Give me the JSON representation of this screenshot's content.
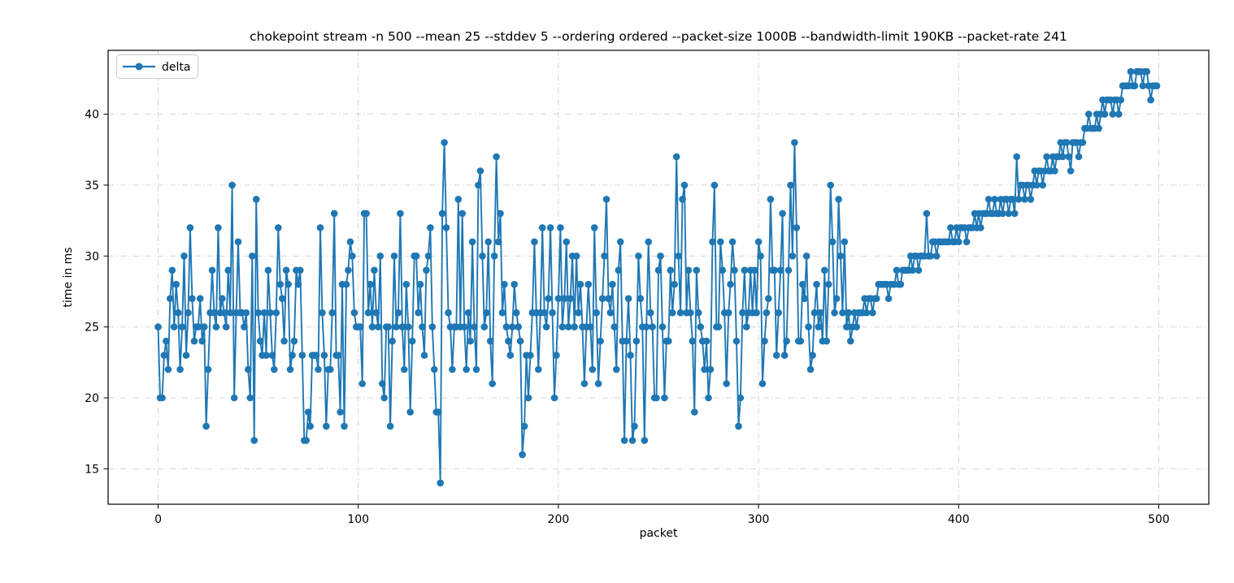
{
  "colors": {
    "series": "#1f77b4",
    "grid": "#cfcfcf",
    "spine": "#000000",
    "background": "#ffffff",
    "legend_border": "#cccccc"
  },
  "chart_data": {
    "type": "line",
    "title": "chokepoint stream -n 500 --mean 25 --stddev 5 --ordering ordered --packet-size 1000B --bandwidth-limit 190KB --packet-rate 241",
    "xlabel": "packet",
    "ylabel": "time in ms",
    "x_ticks": [
      0,
      100,
      200,
      300,
      400,
      500
    ],
    "y_ticks": [
      15,
      20,
      25,
      30,
      35,
      40
    ],
    "xlim": [
      -25,
      525
    ],
    "ylim": [
      12.5,
      44.5
    ],
    "grid": true,
    "grid_style": "dash-dot",
    "legend_position": "upper left",
    "marker": "circle",
    "series": [
      {
        "name": "delta",
        "x_start": 0,
        "x_step": 1,
        "values": [
          25,
          20,
          20,
          23,
          24,
          22,
          27,
          29,
          25,
          28,
          26,
          22,
          25,
          30,
          23,
          26,
          32,
          27,
          24,
          25,
          25,
          27,
          24,
          25,
          18,
          22,
          26,
          29,
          26,
          25,
          32,
          26,
          27,
          26,
          25,
          29,
          26,
          35,
          20,
          26,
          31,
          26,
          26,
          25,
          26,
          22,
          20,
          30,
          17,
          34,
          26,
          24,
          23,
          26,
          23,
          29,
          26,
          23,
          22,
          26,
          32,
          28,
          27,
          24,
          29,
          28,
          22,
          23,
          24,
          29,
          28,
          29,
          23,
          17,
          17,
          19,
          18,
          23,
          23,
          23,
          22,
          32,
          26,
          23,
          18,
          22,
          22,
          26,
          33,
          23,
          23,
          19,
          28,
          18,
          28,
          29,
          31,
          30,
          26,
          25,
          25,
          25,
          21,
          33,
          33,
          26,
          28,
          25,
          29,
          26,
          25,
          30,
          21,
          20,
          25,
          25,
          18,
          24,
          30,
          25,
          26,
          33,
          25,
          22,
          28,
          25,
          19,
          24,
          30,
          30,
          26,
          28,
          25,
          23,
          29,
          30,
          32,
          25,
          22,
          19,
          19,
          14,
          33,
          38,
          32,
          26,
          25,
          22,
          25,
          25,
          34,
          25,
          33,
          25,
          22,
          26,
          24,
          31,
          25,
          22,
          35,
          36,
          30,
          25,
          26,
          31,
          24,
          21,
          30,
          37,
          31,
          33,
          26,
          28,
          25,
          24,
          23,
          25,
          28,
          26,
          25,
          24,
          16,
          18,
          23,
          20,
          23,
          26,
          31,
          26,
          22,
          26,
          32,
          26,
          25,
          27,
          32,
          26,
          20,
          23,
          27,
          32,
          25,
          27,
          31,
          25,
          27,
          30,
          25,
          30,
          26,
          28,
          25,
          21,
          25,
          28,
          25,
          22,
          32,
          26,
          21,
          24,
          27,
          30,
          34,
          27,
          26,
          28,
          25,
          22,
          29,
          31,
          24,
          17,
          24,
          27,
          23,
          17,
          18,
          24,
          30,
          27,
          25,
          17,
          25,
          31,
          26,
          25,
          20,
          20,
          29,
          30,
          25,
          20,
          24,
          24,
          29,
          26,
          28,
          37,
          30,
          26,
          34,
          35,
          26,
          29,
          26,
          24,
          19,
          29,
          26,
          25,
          24,
          22,
          24,
          20,
          22,
          31,
          35,
          25,
          25,
          31,
          29,
          26,
          21,
          26,
          28,
          31,
          29,
          24,
          18,
          20,
          26,
          29,
          25,
          26,
          29,
          26,
          29,
          26,
          31,
          30,
          21,
          24,
          26,
          27,
          34,
          29,
          29,
          23,
          26,
          29,
          33,
          23,
          24,
          29,
          35,
          30,
          38,
          32,
          24,
          24,
          28,
          27,
          30,
          25,
          22,
          23,
          26,
          28,
          25,
          26,
          24,
          29,
          24,
          28,
          35,
          31,
          26,
          27,
          34,
          30,
          26,
          31,
          25,
          26,
          24,
          25,
          26,
          25,
          26,
          26,
          26,
          27,
          26,
          27,
          27,
          26,
          27,
          27,
          28,
          28,
          28,
          28,
          28,
          27,
          28,
          28,
          28,
          29,
          28,
          28,
          29,
          29,
          29,
          29,
          30,
          29,
          30,
          30,
          29,
          30,
          30,
          30,
          33,
          30,
          30,
          31,
          31,
          30,
          31,
          31,
          31,
          31,
          31,
          31,
          32,
          31,
          31,
          32,
          31,
          32,
          32,
          32,
          31,
          32,
          32,
          32,
          33,
          32,
          33,
          32,
          33,
          33,
          33,
          34,
          33,
          33,
          34,
          33,
          33,
          34,
          33,
          34,
          34,
          33,
          34,
          34,
          33,
          37,
          34,
          35,
          35,
          34,
          35,
          35,
          34,
          35,
          36,
          35,
          36,
          36,
          35,
          36,
          37,
          36,
          36,
          37,
          36,
          37,
          37,
          38,
          37,
          38,
          38,
          37,
          36,
          38,
          38,
          38,
          37,
          38,
          38,
          39,
          39,
          40,
          39,
          39,
          39,
          40,
          39,
          40,
          41,
          40,
          41,
          41,
          41,
          40,
          41,
          41,
          40,
          41,
          42,
          42,
          42,
          42,
          43,
          42,
          42,
          43,
          43,
          43,
          42,
          43,
          43,
          42,
          41,
          42,
          42,
          42
        ]
      }
    ]
  }
}
